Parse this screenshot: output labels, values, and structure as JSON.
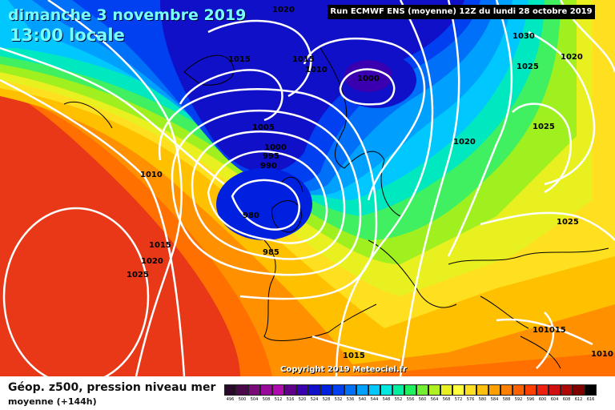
{
  "header": {
    "date": "dimanche 3 novembre 2019",
    "time": "13:00 locale",
    "run": "Run ECMWF ENS (moyenne) 12Z du lundi 28 octobre 2019"
  },
  "copyright": "Copyright 2019 Meteociel.fr",
  "footer": {
    "title": "Géop. z500, pression niveau mer",
    "subtitle": "moyenne  (+144h)"
  },
  "isobar_labels": [
    "1020",
    "1015",
    "1015",
    "1010",
    "1000",
    "1030",
    "1020",
    "1025",
    "1005",
    "1000",
    "995",
    "990",
    "1020",
    "1025",
    "1010",
    "980",
    "1015",
    "985",
    "1020",
    "1025",
    "1025",
    "1015",
    "101015",
    "1010"
  ],
  "legend": {
    "labels": [
      "496",
      "500",
      "504",
      "508",
      "512",
      "516",
      "520",
      "524",
      "528",
      "532",
      "536",
      "540",
      "544",
      "548",
      "552",
      "556",
      "560",
      "564",
      "568",
      "572",
      "576",
      "580",
      "584",
      "588",
      "592",
      "596",
      "600",
      "604",
      "608",
      "612",
      "616"
    ],
    "colors": [
      "#2a0a2a",
      "#4a0a4a",
      "#7a0a7a",
      "#9a0a9a",
      "#b00ab0",
      "#60008a",
      "#3a00b0",
      "#1010c8",
      "#0020e0",
      "#0040f0",
      "#0070f8",
      "#00a0ff",
      "#00c8ff",
      "#00e8e0",
      "#00f0a0",
      "#20f060",
      "#70f030",
      "#b0f020",
      "#e8f020",
      "#ffff40",
      "#ffe020",
      "#ffc010",
      "#ffa000",
      "#ff8000",
      "#ff6000",
      "#ff4000",
      "#f02010",
      "#d01010",
      "#b00808",
      "#800000",
      "#000000"
    ]
  }
}
